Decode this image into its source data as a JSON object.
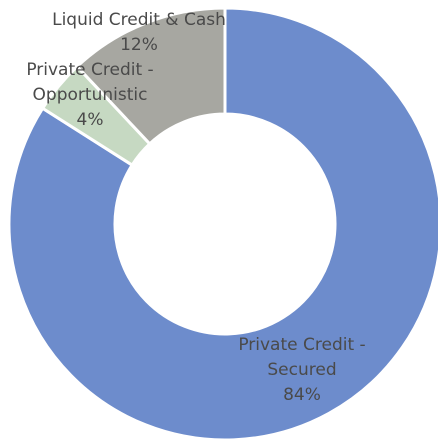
{
  "chart_data": {
    "type": "donut",
    "categories": [
      "Private Credit - Secured",
      "Private Credit - Opportunistic",
      "Liquid Credit & Cash"
    ],
    "values": [
      84,
      4,
      12
    ],
    "value_labels": [
      "84%",
      "4%",
      "12%"
    ],
    "colors": [
      "#6d8ccc",
      "#c6d9c2",
      "#a7a7a1"
    ]
  }
}
